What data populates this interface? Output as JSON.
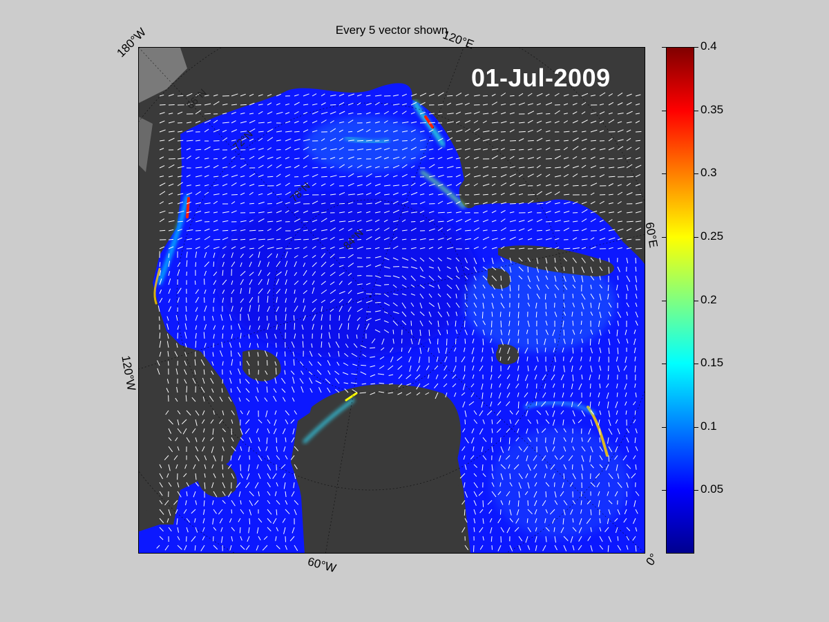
{
  "figure": {
    "title": "Every 5 vector shown",
    "date_label": "01-Jul-2009"
  },
  "map_labels": {
    "lon_180w": "180°W",
    "lon_120e": "120°E",
    "lon_60e": "60°E",
    "lon_120w": "120°W",
    "lon_60w": "60°W",
    "lon_0": "0°",
    "lat_66n": "66°N",
    "lat_72n": "72°N",
    "lat_78n": "78°N",
    "lat_84n": "84°N"
  },
  "colorbar": {
    "min": 0,
    "max": 0.4,
    "ticks": [
      "0.4",
      "0.35",
      "0.3",
      "0.25",
      "0.2",
      "0.15",
      "0.1",
      "0.05"
    ],
    "tick_values": [
      0.4,
      0.35,
      0.3,
      0.25,
      0.2,
      0.15,
      0.1,
      0.05
    ],
    "colormap": "jet"
  },
  "colors": {
    "background": "#cccccc",
    "land": "#3a3a3a",
    "ocean_low": "#0a14ff",
    "vector": "#ffffff"
  }
}
